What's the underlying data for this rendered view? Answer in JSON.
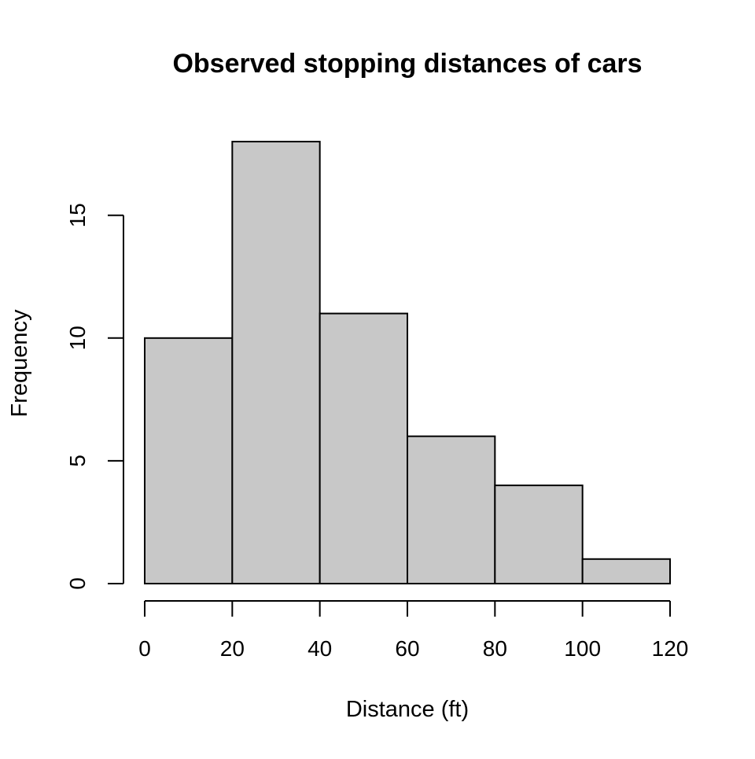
{
  "chart_data": {
    "type": "bar",
    "title": "Observed stopping distances of cars",
    "xlabel": "Distance (ft)",
    "ylabel": "Frequency",
    "bins": [
      {
        "start": 0,
        "end": 20,
        "count": 10
      },
      {
        "start": 20,
        "end": 40,
        "count": 18
      },
      {
        "start": 40,
        "end": 60,
        "count": 11
      },
      {
        "start": 60,
        "end": 80,
        "count": 6
      },
      {
        "start": 80,
        "end": 100,
        "count": 4
      },
      {
        "start": 100,
        "end": 120,
        "count": 1
      }
    ],
    "xlim": [
      0,
      120
    ],
    "ylim": [
      0,
      18
    ],
    "x_ticks": [
      0,
      20,
      40,
      60,
      80,
      100,
      120
    ],
    "y_ticks": [
      0,
      5,
      10,
      15
    ],
    "grid": false,
    "colors": {
      "bar_fill": "#c8c8c8",
      "bar_stroke": "#000000",
      "axis": "#000000"
    }
  }
}
